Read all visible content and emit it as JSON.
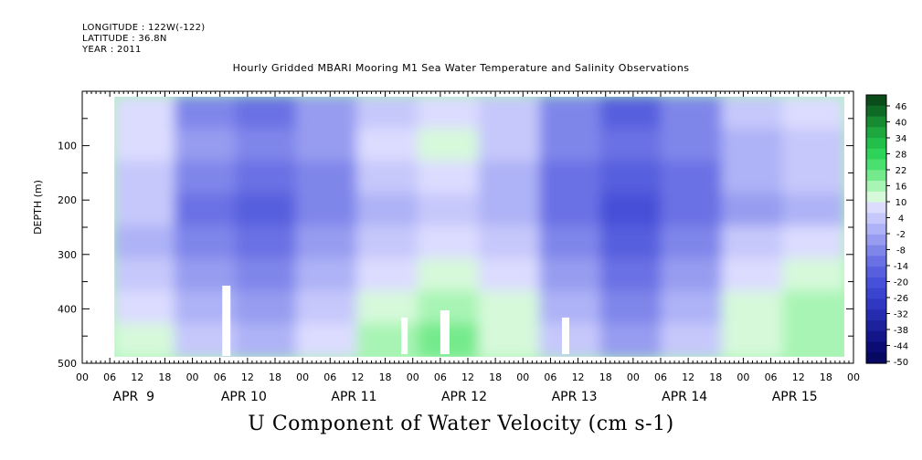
{
  "header": {
    "longitude": "LONGITUDE : 122W(-122)",
    "latitude": "LATITUDE : 36.8N",
    "year": "YEAR : 2011"
  },
  "chart_data": {
    "type": "heatmap",
    "title": "Hourly Gridded MBARI Mooring M1 Sea Water Temperature and Salinity Observations",
    "bottom_title": "U Component of Water Velocity (cm s-1)",
    "ylabel": "DEPTH (m)",
    "ylim": [
      500,
      0
    ],
    "y_inverted": true,
    "y_ticks": [
      100,
      200,
      300,
      400,
      500
    ],
    "x_range_hours": [
      0,
      168
    ],
    "x_hour_labels": [
      "00",
      "06",
      "12",
      "18",
      "00",
      "06",
      "12",
      "18",
      "00",
      "06",
      "12",
      "18",
      "00",
      "06",
      "12",
      "18",
      "00",
      "06",
      "12",
      "18",
      "00",
      "06",
      "12",
      "18",
      "00",
      "06",
      "12",
      "18",
      "00"
    ],
    "day_labels": [
      "APR  9",
      "APR 10",
      "APR 11",
      "APR 12",
      "APR 13",
      "APR 14",
      "APR 15"
    ],
    "data_extent": {
      "x_start_hours": 7,
      "x_end_hours": 166,
      "depth_top": 10,
      "depth_bottom": 488
    },
    "grid": false,
    "colorbar": {
      "position": "right",
      "labels": [
        "46",
        "40",
        "34",
        "28",
        "22",
        "16",
        "10",
        "4",
        "-2",
        "-8",
        "-14",
        "-20",
        "-26",
        "-32",
        "-38",
        "-44",
        "-50"
      ],
      "colors": [
        "#0a4d1a",
        "#0f6a25",
        "#168b32",
        "#1ea63f",
        "#22bf4b",
        "#2ed35a",
        "#4ae06f",
        "#75ea8c",
        "#a8f4b4",
        "#d6f9da",
        "#dcdcff",
        "#c6c8fb",
        "#aeb2f6",
        "#979cf0",
        "#7f86ea",
        "#6a71e4",
        "#575fde",
        "#4750d8",
        "#3a44cf",
        "#3038c2",
        "#262cb0",
        "#1c219c",
        "#131688",
        "#0b0d74",
        "#060862"
      ]
    },
    "series": [
      {
        "values": [
          [
            8,
            -6,
            -10,
            -4,
            6,
            10,
            4,
            -8,
            -14,
            -6,
            4,
            8
          ],
          [
            10,
            -4,
            -8,
            -2,
            8,
            12,
            6,
            -6,
            -12,
            -8,
            2,
            6
          ],
          [
            6,
            -8,
            -12,
            -6,
            4,
            8,
            2,
            -10,
            -16,
            -10,
            0,
            4
          ],
          [
            4,
            -10,
            -14,
            -8,
            2,
            6,
            0,
            -12,
            -18,
            -12,
            -2,
            2
          ],
          [
            2,
            -6,
            -10,
            -4,
            6,
            10,
            4,
            -8,
            -14,
            -8,
            4,
            8
          ],
          [
            6,
            -2,
            -6,
            0,
            10,
            14,
            8,
            -4,
            -10,
            -4,
            8,
            12
          ],
          [
            10,
            2,
            -2,
            4,
            14,
            18,
            12,
            0,
            -6,
            0,
            12,
            16
          ],
          [
            14,
            6,
            2,
            8,
            16,
            20,
            14,
            4,
            -2,
            4,
            14,
            18
          ]
        ]
      }
    ]
  }
}
